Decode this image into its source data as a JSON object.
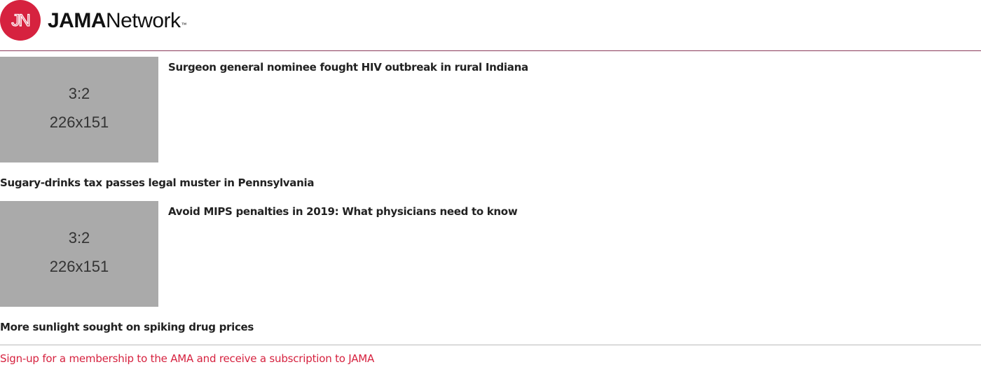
{
  "header": {
    "logo_initials": "JN",
    "brand_strong": "JAMA",
    "brand_light": "Network",
    "trademark": "™"
  },
  "articles": [
    {
      "thumb_ratio": "3:2",
      "thumb_dims": "226x151",
      "title": "Surgeon general nominee fought HIV outbreak in rural Indiana"
    },
    {
      "title": "Sugary-drinks tax passes legal muster in Pennsylvania"
    },
    {
      "thumb_ratio": "3:2",
      "thumb_dims": "226x151",
      "title": "Avoid MIPS penalties in 2019: What physicians need to know"
    },
    {
      "title": "More sunlight sought on spiking drug prices"
    }
  ],
  "footer": {
    "signup_link": "Sign-up for a membership to the AMA and receive a subscription to JAMA"
  },
  "colors": {
    "brand_red": "#d6223f",
    "header_rule": "#8a3a5a",
    "placeholder_gray": "#aaaaaa"
  }
}
